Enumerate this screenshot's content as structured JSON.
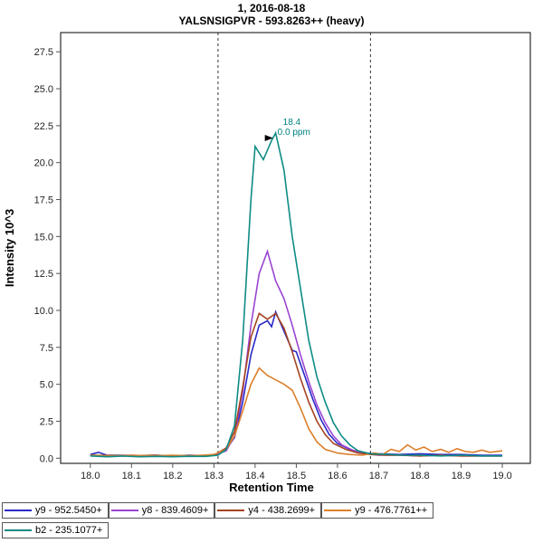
{
  "header": {
    "line1": "1, 2016-08-18",
    "line2": "YALSNSIGPVR - 593.8263++ (heavy)"
  },
  "axes": {
    "x_label": "Retention Time",
    "y_label": "Intensity 10^3"
  },
  "legend": {
    "items_per_row": 4
  },
  "chart_data": {
    "type": "line",
    "title": "1, 2016-08-18",
    "subtitle": "YALSNSIGPVR - 593.8263++ (heavy)",
    "xlabel": "Retention Time",
    "ylabel": "Intensity 10^3",
    "xlim": [
      17.928,
      19.068
    ],
    "ylim": [
      -0.35,
      28.8
    ],
    "x_ticks": [
      18.0,
      18.1,
      18.2,
      18.3,
      18.4,
      18.5,
      18.6,
      18.7,
      18.8,
      18.9,
      19.0
    ],
    "y_ticks": [
      0.0,
      2.5,
      5.0,
      7.5,
      10.0,
      12.5,
      15.0,
      17.5,
      20.0,
      22.5,
      25.0,
      27.5
    ],
    "grid": false,
    "legend_position": "bottom",
    "peak_boundaries": [
      18.31,
      18.68
    ],
    "annotation": {
      "x": 18.45,
      "y": 22.0,
      "lines": [
        "18.4",
        "0.0 ppm"
      ],
      "color": "#008080"
    },
    "series": [
      {
        "name": "y9 - 952.5450+",
        "color": "#2a2ac8",
        "points": [
          [
            18.0,
            0.25
          ],
          [
            18.02,
            0.4
          ],
          [
            18.04,
            0.2
          ],
          [
            18.08,
            0.2
          ],
          [
            18.12,
            0.15
          ],
          [
            18.16,
            0.2
          ],
          [
            18.2,
            0.15
          ],
          [
            18.24,
            0.2
          ],
          [
            18.28,
            0.15
          ],
          [
            18.31,
            0.3
          ],
          [
            18.33,
            0.6
          ],
          [
            18.35,
            1.4
          ],
          [
            18.37,
            3.8
          ],
          [
            18.39,
            7.0
          ],
          [
            18.41,
            9.0
          ],
          [
            18.43,
            9.3
          ],
          [
            18.44,
            8.9
          ],
          [
            18.45,
            9.9
          ],
          [
            18.47,
            8.6
          ],
          [
            18.49,
            7.3
          ],
          [
            18.5,
            7.2
          ],
          [
            18.52,
            5.6
          ],
          [
            18.54,
            4.0
          ],
          [
            18.56,
            2.6
          ],
          [
            18.58,
            1.6
          ],
          [
            18.6,
            1.0
          ],
          [
            18.63,
            0.6
          ],
          [
            18.66,
            0.35
          ],
          [
            18.7,
            0.3
          ],
          [
            18.75,
            0.25
          ],
          [
            18.8,
            0.3
          ],
          [
            18.85,
            0.25
          ],
          [
            18.9,
            0.25
          ],
          [
            18.95,
            0.2
          ],
          [
            19.0,
            0.2
          ]
        ]
      },
      {
        "name": "y8 - 839.4609+",
        "color": "#9a44d2",
        "points": [
          [
            18.0,
            0.2
          ],
          [
            18.05,
            0.15
          ],
          [
            18.1,
            0.2
          ],
          [
            18.15,
            0.15
          ],
          [
            18.2,
            0.18
          ],
          [
            18.25,
            0.15
          ],
          [
            18.3,
            0.2
          ],
          [
            18.33,
            0.5
          ],
          [
            18.35,
            1.5
          ],
          [
            18.37,
            4.5
          ],
          [
            18.39,
            9.0
          ],
          [
            18.41,
            12.5
          ],
          [
            18.43,
            14.0
          ],
          [
            18.45,
            12.0
          ],
          [
            18.47,
            10.8
          ],
          [
            18.49,
            9.0
          ],
          [
            18.51,
            7.0
          ],
          [
            18.53,
            5.2
          ],
          [
            18.55,
            3.6
          ],
          [
            18.57,
            2.4
          ],
          [
            18.59,
            1.5
          ],
          [
            18.61,
            0.9
          ],
          [
            18.64,
            0.5
          ],
          [
            18.67,
            0.3
          ],
          [
            18.7,
            0.2
          ],
          [
            18.75,
            0.2
          ],
          [
            18.8,
            0.15
          ],
          [
            18.85,
            0.2
          ],
          [
            18.9,
            0.15
          ],
          [
            18.95,
            0.15
          ],
          [
            19.0,
            0.15
          ]
        ]
      },
      {
        "name": "y4 - 438.2699+",
        "color": "#a5441f",
        "points": [
          [
            18.0,
            0.2
          ],
          [
            18.05,
            0.18
          ],
          [
            18.1,
            0.15
          ],
          [
            18.15,
            0.2
          ],
          [
            18.2,
            0.15
          ],
          [
            18.25,
            0.18
          ],
          [
            18.3,
            0.2
          ],
          [
            18.33,
            0.7
          ],
          [
            18.35,
            1.8
          ],
          [
            18.37,
            4.8
          ],
          [
            18.39,
            8.2
          ],
          [
            18.41,
            9.8
          ],
          [
            18.43,
            9.4
          ],
          [
            18.45,
            9.8
          ],
          [
            18.47,
            8.8
          ],
          [
            18.49,
            7.2
          ],
          [
            18.51,
            5.4
          ],
          [
            18.53,
            3.8
          ],
          [
            18.55,
            2.5
          ],
          [
            18.57,
            1.6
          ],
          [
            18.59,
            1.0
          ],
          [
            18.62,
            0.6
          ],
          [
            18.65,
            0.35
          ],
          [
            18.68,
            0.25
          ],
          [
            18.72,
            0.2
          ],
          [
            18.76,
            0.2
          ],
          [
            18.8,
            0.15
          ],
          [
            18.85,
            0.2
          ],
          [
            18.9,
            0.15
          ],
          [
            18.95,
            0.15
          ],
          [
            19.0,
            0.15
          ]
        ]
      },
      {
        "name": "y9 - 476.7761++",
        "color": "#dc7f2c",
        "points": [
          [
            18.0,
            0.2
          ],
          [
            18.05,
            0.15
          ],
          [
            18.1,
            0.2
          ],
          [
            18.15,
            0.15
          ],
          [
            18.2,
            0.2
          ],
          [
            18.25,
            0.15
          ],
          [
            18.3,
            0.25
          ],
          [
            18.33,
            0.6
          ],
          [
            18.35,
            1.5
          ],
          [
            18.37,
            3.2
          ],
          [
            18.39,
            5.0
          ],
          [
            18.41,
            6.1
          ],
          [
            18.43,
            5.6
          ],
          [
            18.45,
            5.3
          ],
          [
            18.47,
            5.0
          ],
          [
            18.49,
            4.6
          ],
          [
            18.51,
            3.4
          ],
          [
            18.53,
            2.0
          ],
          [
            18.55,
            1.1
          ],
          [
            18.57,
            0.6
          ],
          [
            18.6,
            0.35
          ],
          [
            18.63,
            0.25
          ],
          [
            18.66,
            0.2
          ],
          [
            18.69,
            0.35
          ],
          [
            18.71,
            0.25
          ],
          [
            18.73,
            0.6
          ],
          [
            18.75,
            0.45
          ],
          [
            18.77,
            0.9
          ],
          [
            18.79,
            0.55
          ],
          [
            18.81,
            0.75
          ],
          [
            18.83,
            0.45
          ],
          [
            18.85,
            0.6
          ],
          [
            18.87,
            0.4
          ],
          [
            18.89,
            0.65
          ],
          [
            18.91,
            0.45
          ],
          [
            18.93,
            0.4
          ],
          [
            18.95,
            0.55
          ],
          [
            18.97,
            0.4
          ],
          [
            19.0,
            0.5
          ]
        ]
      },
      {
        "name": "b2 - 235.1077+",
        "color": "#0e8c85",
        "points": [
          [
            18.0,
            0.15
          ],
          [
            18.04,
            0.1
          ],
          [
            18.08,
            0.14
          ],
          [
            18.12,
            0.1
          ],
          [
            18.16,
            0.12
          ],
          [
            18.2,
            0.1
          ],
          [
            18.24,
            0.13
          ],
          [
            18.28,
            0.12
          ],
          [
            18.31,
            0.2
          ],
          [
            18.33,
            0.6
          ],
          [
            18.35,
            2.2
          ],
          [
            18.37,
            8.0
          ],
          [
            18.39,
            17.5
          ],
          [
            18.4,
            21.1
          ],
          [
            18.42,
            20.2
          ],
          [
            18.44,
            21.5
          ],
          [
            18.45,
            22.0
          ],
          [
            18.47,
            19.5
          ],
          [
            18.49,
            15.0
          ],
          [
            18.51,
            11.5
          ],
          [
            18.53,
            8.0
          ],
          [
            18.55,
            5.5
          ],
          [
            18.57,
            3.8
          ],
          [
            18.59,
            2.4
          ],
          [
            18.61,
            1.5
          ],
          [
            18.63,
            0.9
          ],
          [
            18.65,
            0.5
          ],
          [
            18.68,
            0.3
          ],
          [
            18.72,
            0.25
          ],
          [
            18.76,
            0.2
          ],
          [
            18.8,
            0.2
          ],
          [
            18.85,
            0.15
          ],
          [
            18.9,
            0.2
          ],
          [
            18.95,
            0.15
          ],
          [
            19.0,
            0.15
          ]
        ]
      }
    ]
  }
}
